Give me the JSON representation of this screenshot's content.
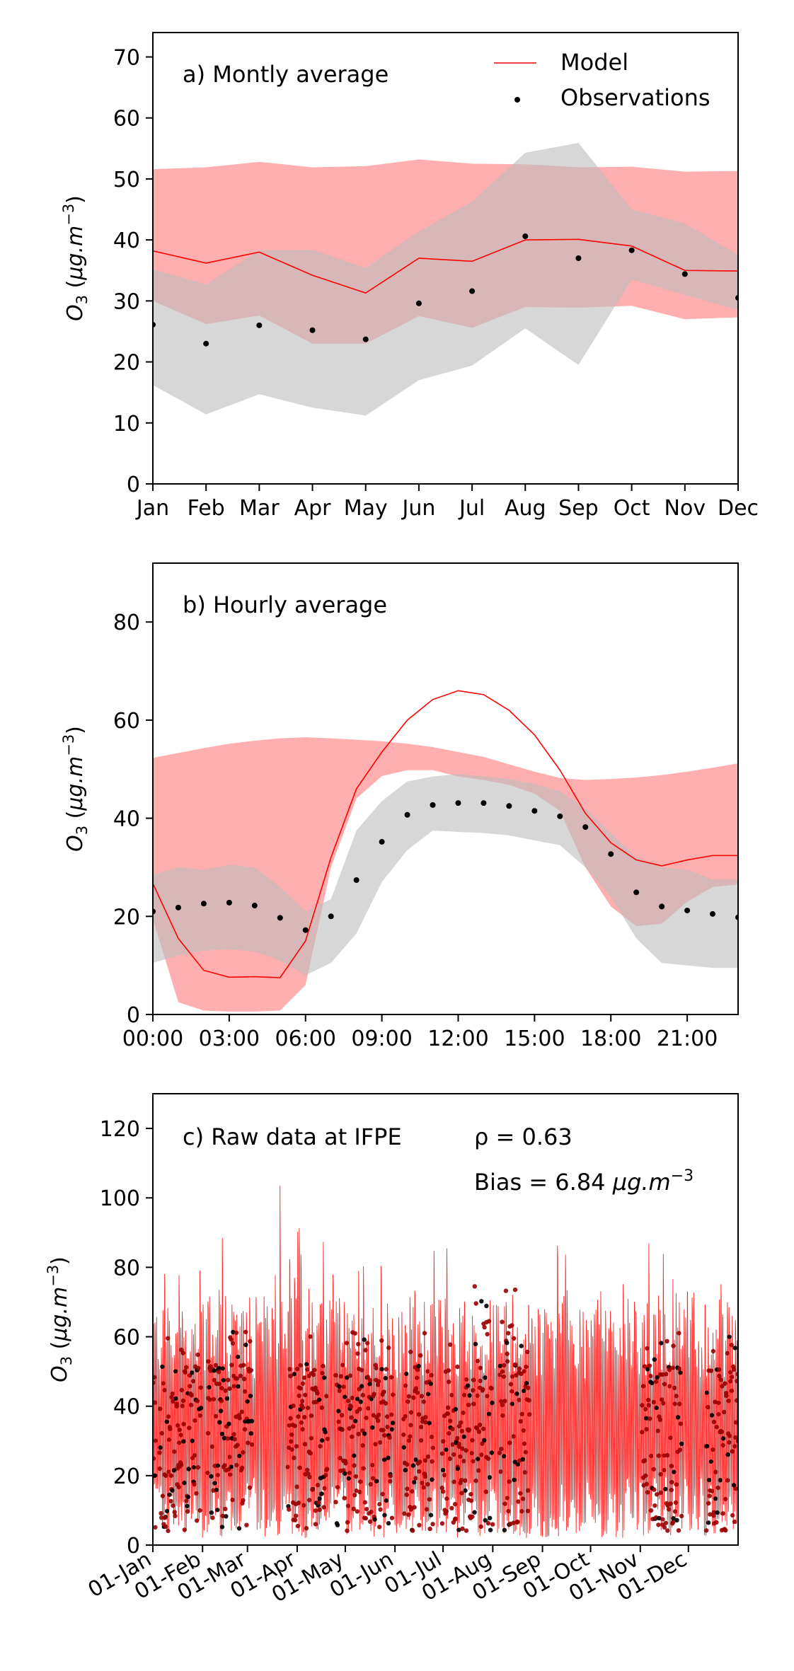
{
  "colors": {
    "model": "#ff0000",
    "model_band": "#ff9e9e",
    "obs": "#000000",
    "obs_band": "#bdbdbd",
    "obs_raw": "#9a0000"
  },
  "chart_data": [
    {
      "type": "line",
      "panel": "a",
      "annotation": "a) Montly average",
      "ylabel": "O3 (µg.m−3)",
      "ylim": [
        0,
        74
      ],
      "yticks": [
        0,
        10,
        20,
        30,
        40,
        50,
        60,
        70
      ],
      "x": [
        "Jan",
        "Feb",
        "Mar",
        "Apr",
        "May",
        "Jun",
        "Jul",
        "Aug",
        "Sep",
        "Oct",
        "Nov",
        "Dec"
      ],
      "legend": {
        "placement": "top-right",
        "entries": [
          "Model",
          "Observations"
        ]
      },
      "series": [
        {
          "name": "Model",
          "kind": "line",
          "values": [
            38.2,
            36.2,
            38.0,
            34.2,
            31.3,
            37.0,
            36.5,
            40.0,
            40.1,
            39.0,
            35.0,
            34.9
          ]
        },
        {
          "kind": "band",
          "of": "Model",
          "lower": [
            30.0,
            26.2,
            27.6,
            23.0,
            23.0,
            27.5,
            25.6,
            29.0,
            28.9,
            29.2,
            27.0,
            27.3
          ],
          "upper": [
            51.6,
            51.9,
            52.8,
            51.9,
            52.1,
            53.2,
            52.5,
            52.4,
            51.9,
            52.0,
            51.2,
            51.3
          ]
        },
        {
          "name": "Observations",
          "kind": "points",
          "values": [
            26.1,
            23.0,
            26.0,
            25.2,
            23.7,
            29.6,
            31.6,
            40.6,
            37.0,
            38.3,
            34.4,
            30.5
          ]
        },
        {
          "kind": "band",
          "of": "Observations",
          "lower": [
            16.2,
            11.4,
            14.7,
            12.5,
            11.2,
            17.0,
            19.4,
            25.5,
            19.5,
            33.5,
            31.0,
            28.5
          ],
          "upper": [
            35.2,
            32.7,
            38.3,
            38.4,
            35.4,
            41.4,
            46.3,
            54.3,
            55.9,
            45.0,
            42.7,
            37.5
          ]
        }
      ]
    },
    {
      "type": "line",
      "panel": "b",
      "annotation": "b) Hourly average",
      "ylabel": "O3 (µg.m−3)",
      "ylim": [
        0,
        92
      ],
      "yticks": [
        0,
        20,
        40,
        60,
        80
      ],
      "xtick_labels": [
        "00:00",
        "03:00",
        "06:00",
        "09:00",
        "12:00",
        "15:00",
        "18:00",
        "21:00"
      ],
      "x": [
        0,
        1,
        2,
        3,
        4,
        5,
        6,
        7,
        8,
        9,
        10,
        11,
        12,
        13,
        14,
        15,
        16,
        17,
        18,
        19,
        20,
        21,
        22,
        23
      ],
      "series": [
        {
          "name": "Model",
          "kind": "line",
          "values": [
            26.7,
            15.5,
            9.0,
            7.6,
            7.7,
            7.5,
            15.0,
            32.0,
            46.0,
            53.5,
            60.0,
            64.2,
            66.0,
            65.2,
            62.0,
            57.0,
            49.8,
            41.0,
            35.0,
            31.5,
            30.3,
            31.5,
            32.4,
            32.4
          ]
        },
        {
          "kind": "band",
          "of": "Model",
          "lower": [
            19.5,
            2.5,
            0.8,
            0.6,
            0.6,
            0.8,
            6.0,
            30.0,
            44.0,
            48.6,
            49.8,
            49.8,
            48.5,
            47.8,
            46.8,
            45.0,
            41.5,
            30.0,
            22.0,
            18.0,
            18.5,
            23.0,
            26.0,
            26.5
          ]
        },
        {
          "kind": "band_upper",
          "of": "Model",
          "upper": [
            52.3,
            53.3,
            54.3,
            55.2,
            55.8,
            56.3,
            56.5,
            56.3,
            56.0,
            55.7,
            55.2,
            54.5,
            53.5,
            52.5,
            51.0,
            49.5,
            48.2,
            47.8,
            48.0,
            48.3,
            48.8,
            49.5,
            50.3,
            51.2
          ]
        },
        {
          "name": "Observations",
          "kind": "points",
          "values": [
            21.0,
            21.8,
            22.6,
            22.8,
            22.2,
            19.7,
            17.2,
            20.0,
            27.4,
            35.2,
            40.7,
            42.7,
            43.1,
            43.1,
            42.5,
            41.5,
            40.4,
            38.2,
            32.7,
            24.9,
            22.0,
            21.2,
            20.5,
            19.8
          ]
        },
        {
          "kind": "band",
          "of": "Observations",
          "lower": [
            10.5,
            12.0,
            13.0,
            13.3,
            12.8,
            11.0,
            8.0,
            10.5,
            16.5,
            27.0,
            33.5,
            37.5,
            37.2,
            37.0,
            36.5,
            35.5,
            34.5,
            30.0,
            24.0,
            15.5,
            10.5,
            10.0,
            9.5,
            9.5
          ],
          "upper": [
            28.5,
            30.0,
            29.5,
            30.5,
            30.0,
            26.0,
            21.0,
            23.5,
            37.5,
            43.5,
            47.5,
            48.5,
            49.0,
            48.5,
            48.0,
            47.0,
            45.5,
            42.0,
            37.0,
            32.0,
            30.0,
            29.5,
            27.5,
            27.5
          ]
        }
      ]
    },
    {
      "type": "line",
      "panel": "c",
      "annotation": "c) Raw data at IFPE",
      "stats": {
        "rho": "ρ = 0.63",
        "bias": "Bias = 6.84 µg.m−3"
      },
      "ylabel": "O3 (µg.m−3)",
      "ylim": [
        0,
        130
      ],
      "yticks": [
        0,
        20,
        40,
        60,
        80,
        100,
        120
      ],
      "xtick_labels": [
        "01-Jan",
        "01-Feb",
        "01-Mar",
        "01-Apr",
        "01-May",
        "01-Jun",
        "01-Jul",
        "01-Aug",
        "01-Sep",
        "01-Oct",
        "01-Nov",
        "01-Dec"
      ],
      "series": [
        {
          "name": "Model",
          "kind": "hourly-line",
          "daily_peak_range": [
            45,
            80
          ],
          "max": 110,
          "min": 0
        },
        {
          "name": "Observations",
          "kind": "hourly-points",
          "range": [
            3,
            80
          ]
        }
      ]
    }
  ]
}
